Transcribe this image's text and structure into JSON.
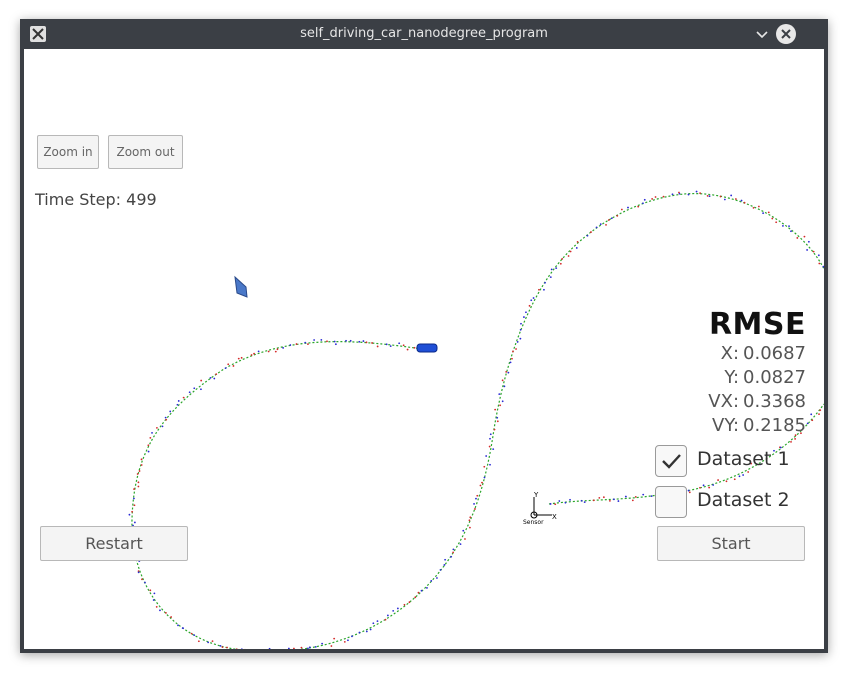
{
  "window": {
    "title": "self_driving_car_nanodegree_program"
  },
  "controls": {
    "zoom_in": "Zoom in",
    "zoom_out": "Zoom out",
    "restart": "Restart",
    "start": "Start"
  },
  "status": {
    "time_step_label": "Time Step:",
    "time_step_value": "499"
  },
  "rmse": {
    "title": "RMSE",
    "x_label": "X:",
    "x_value": "0.0687",
    "y_label": "Y:",
    "y_value": "0.0827",
    "vx_label": "VX:",
    "vx_value": "0.3368",
    "vy_label": "VY:",
    "vy_value": "0.2185"
  },
  "datasets": [
    {
      "label": "Dataset 1",
      "checked": true
    },
    {
      "label": "Dataset 2",
      "checked": false
    }
  ],
  "sensor": {
    "label": "Sensor",
    "axis_x": "X",
    "axis_y": "Y"
  },
  "colors": {
    "ground_truth": "#2aa52a",
    "lidar": "#d42a2a",
    "radar": "#2a2ad4",
    "car": "#1f4fd6"
  }
}
